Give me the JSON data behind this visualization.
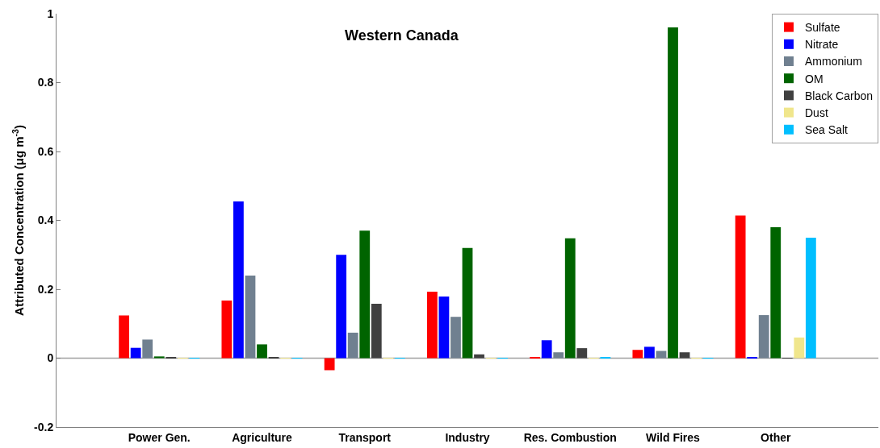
{
  "chart_data": {
    "type": "bar",
    "title": "Western Canada",
    "ylabel": "Attributed Concentration (μg m$^{-3}$)",
    "categories": [
      "Power Gen.",
      "Agriculture",
      "Transport",
      "Industry",
      "Res. Combustion",
      "Wild Fires",
      "Other"
    ],
    "series": [
      {
        "name": "Sulfate",
        "color": "#ff0000",
        "values": [
          0.124,
          0.167,
          -0.035,
          0.193,
          0.002,
          0.024,
          0.414
        ]
      },
      {
        "name": "Nitrate",
        "color": "#0000ff",
        "values": [
          0.03,
          0.455,
          0.3,
          0.179,
          0.052,
          0.033,
          0.002
        ]
      },
      {
        "name": "Ammonium",
        "color": "#708090",
        "values": [
          0.054,
          0.24,
          0.074,
          0.12,
          0.017,
          0.021,
          0.125
        ]
      },
      {
        "name": "OM",
        "color": "#006400",
        "values": [
          0.005,
          0.04,
          0.37,
          0.32,
          0.348,
          0.96,
          0.38
        ]
      },
      {
        "name": "Black Carbon",
        "color": "#404040",
        "values": [
          0.002,
          0.002,
          0.158,
          0.011,
          0.029,
          0.017,
          0.001
        ]
      },
      {
        "name": "Dust",
        "color": "#f0e68c",
        "values": [
          0.001,
          0.001,
          0.001,
          0.001,
          0.001,
          0.001,
          0.06
        ]
      },
      {
        "name": "Sea Salt",
        "color": "#00bfff",
        "values": [
          0.001,
          0.001,
          0.001,
          0.001,
          0.002,
          0.001,
          0.35
        ]
      }
    ],
    "ylim": [
      -0.2,
      1
    ],
    "yticks": [
      -0.2,
      0,
      0.2,
      0.4,
      0.6,
      0.8,
      1
    ],
    "ref_lines": [
      {
        "axis": "y",
        "value": 0,
        "color": "#a0a0a0"
      }
    ],
    "grid": false,
    "legend": "top right"
  }
}
